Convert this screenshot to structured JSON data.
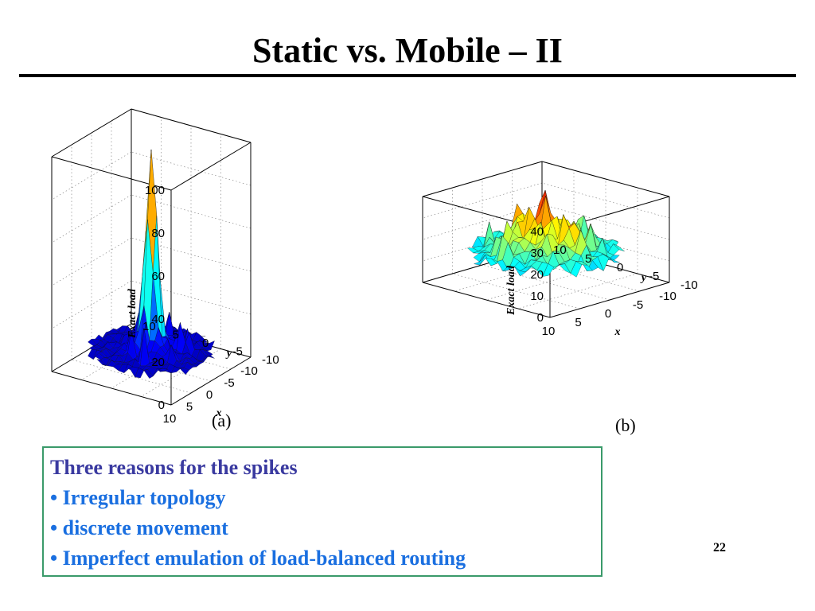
{
  "slide": {
    "title": "Static vs. Mobile – II",
    "page_number": "22"
  },
  "reasons": {
    "heading": "Three reasons for the spikes",
    "items": [
      "• Irregular topology",
      "• discrete movement",
      "• Imperfect emulation of  load-balanced routing"
    ]
  },
  "colors": {
    "title_rule": "#000000",
    "box_border": "#3a9a6a",
    "heading_text": "#3a3aa0",
    "item_text": "#1a6fe0"
  },
  "chart_data": [
    {
      "type": "surface3d",
      "caption": "(a)",
      "zlabel": "Exact load",
      "xlabel": "x",
      "ylabel": "y",
      "zlim": [
        0,
        100
      ],
      "xlim": [
        -10,
        10
      ],
      "ylim": [
        -10,
        10
      ],
      "z_ticks": [
        "0",
        "20",
        "40",
        "60",
        "80",
        "100"
      ],
      "x_ticks": [
        "10",
        "5",
        "0",
        "-5",
        "-10"
      ],
      "y_ticks": [
        "-10",
        "-5",
        "0",
        "5",
        "10"
      ],
      "grid": true,
      "colormap": "jet",
      "peak": {
        "x": 0,
        "y": 0,
        "z": 100
      },
      "base_level": 5
    },
    {
      "type": "surface3d",
      "caption": "(b)",
      "zlabel": "Exact load",
      "xlabel": "x",
      "ylabel": "y",
      "zlim": [
        0,
        40
      ],
      "xlim": [
        -10,
        10
      ],
      "ylim": [
        -10,
        10
      ],
      "z_ticks": [
        "0",
        "10",
        "20",
        "30",
        "40"
      ],
      "x_ticks": [
        "10",
        "5",
        "0",
        "-5",
        "-10"
      ],
      "y_ticks": [
        "-10",
        "-5",
        "0",
        "5",
        "10"
      ],
      "grid": true,
      "colormap": "jet",
      "peak": {
        "x": -2,
        "y": 2,
        "z": 40
      },
      "base_level": 10
    }
  ]
}
